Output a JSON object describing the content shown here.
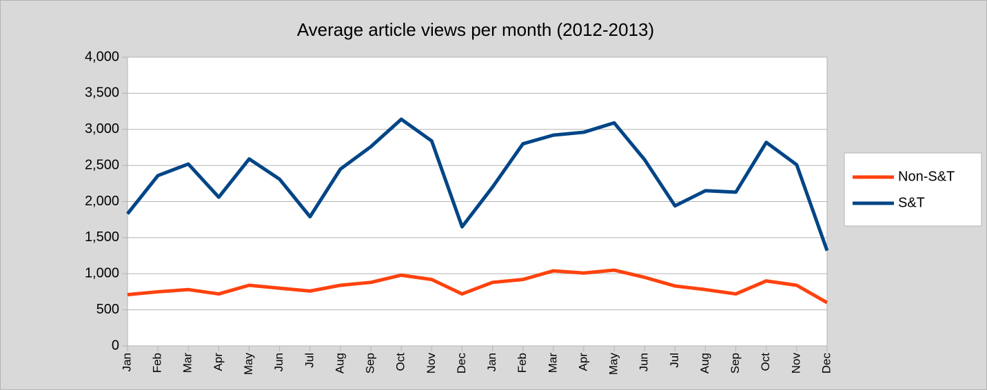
{
  "chart_data": {
    "type": "line",
    "title": "Average article views per month (2012-2013)",
    "categories": [
      "Jan",
      "Feb",
      "Mar",
      "Apr",
      "May",
      "Jun",
      "Jul",
      "Aug",
      "Sep",
      "Oct",
      "Nov",
      "Dec",
      "Jan",
      "Feb",
      "Mar",
      "Apr",
      "May",
      "Jun",
      "Jul",
      "Aug",
      "Sep",
      "Oct",
      "Nov",
      "Dec"
    ],
    "series": [
      {
        "name": "Non-S&T",
        "color": "#ff420e",
        "values": [
          710,
          750,
          780,
          720,
          840,
          800,
          760,
          840,
          880,
          980,
          920,
          720,
          880,
          920,
          1040,
          1010,
          1050,
          950,
          830,
          780,
          720,
          900,
          840,
          600
        ]
      },
      {
        "name": "S&T",
        "color": "#004586",
        "values": [
          1830,
          2360,
          2520,
          2060,
          2590,
          2310,
          1790,
          2450,
          2760,
          3140,
          2840,
          1650,
          2200,
          2800,
          2920,
          2960,
          3090,
          2580,
          1940,
          2150,
          2130,
          2820,
          2510,
          1320
        ]
      }
    ],
    "ylim": [
      0,
      4000
    ],
    "yticks": [
      0,
      500,
      {
        "value": 1000,
        "label": "1,000"
      },
      {
        "value": 1500,
        "label": "1,500"
      },
      {
        "value": 2000,
        "label": "2,000"
      },
      {
        "value": 2500,
        "label": "2,500"
      },
      {
        "value": 3000,
        "label": "3,000"
      },
      {
        "value": 3500,
        "label": "3,500"
      },
      {
        "value": 4000,
        "label": "4,000"
      }
    ],
    "grid": true,
    "legend": "right"
  }
}
